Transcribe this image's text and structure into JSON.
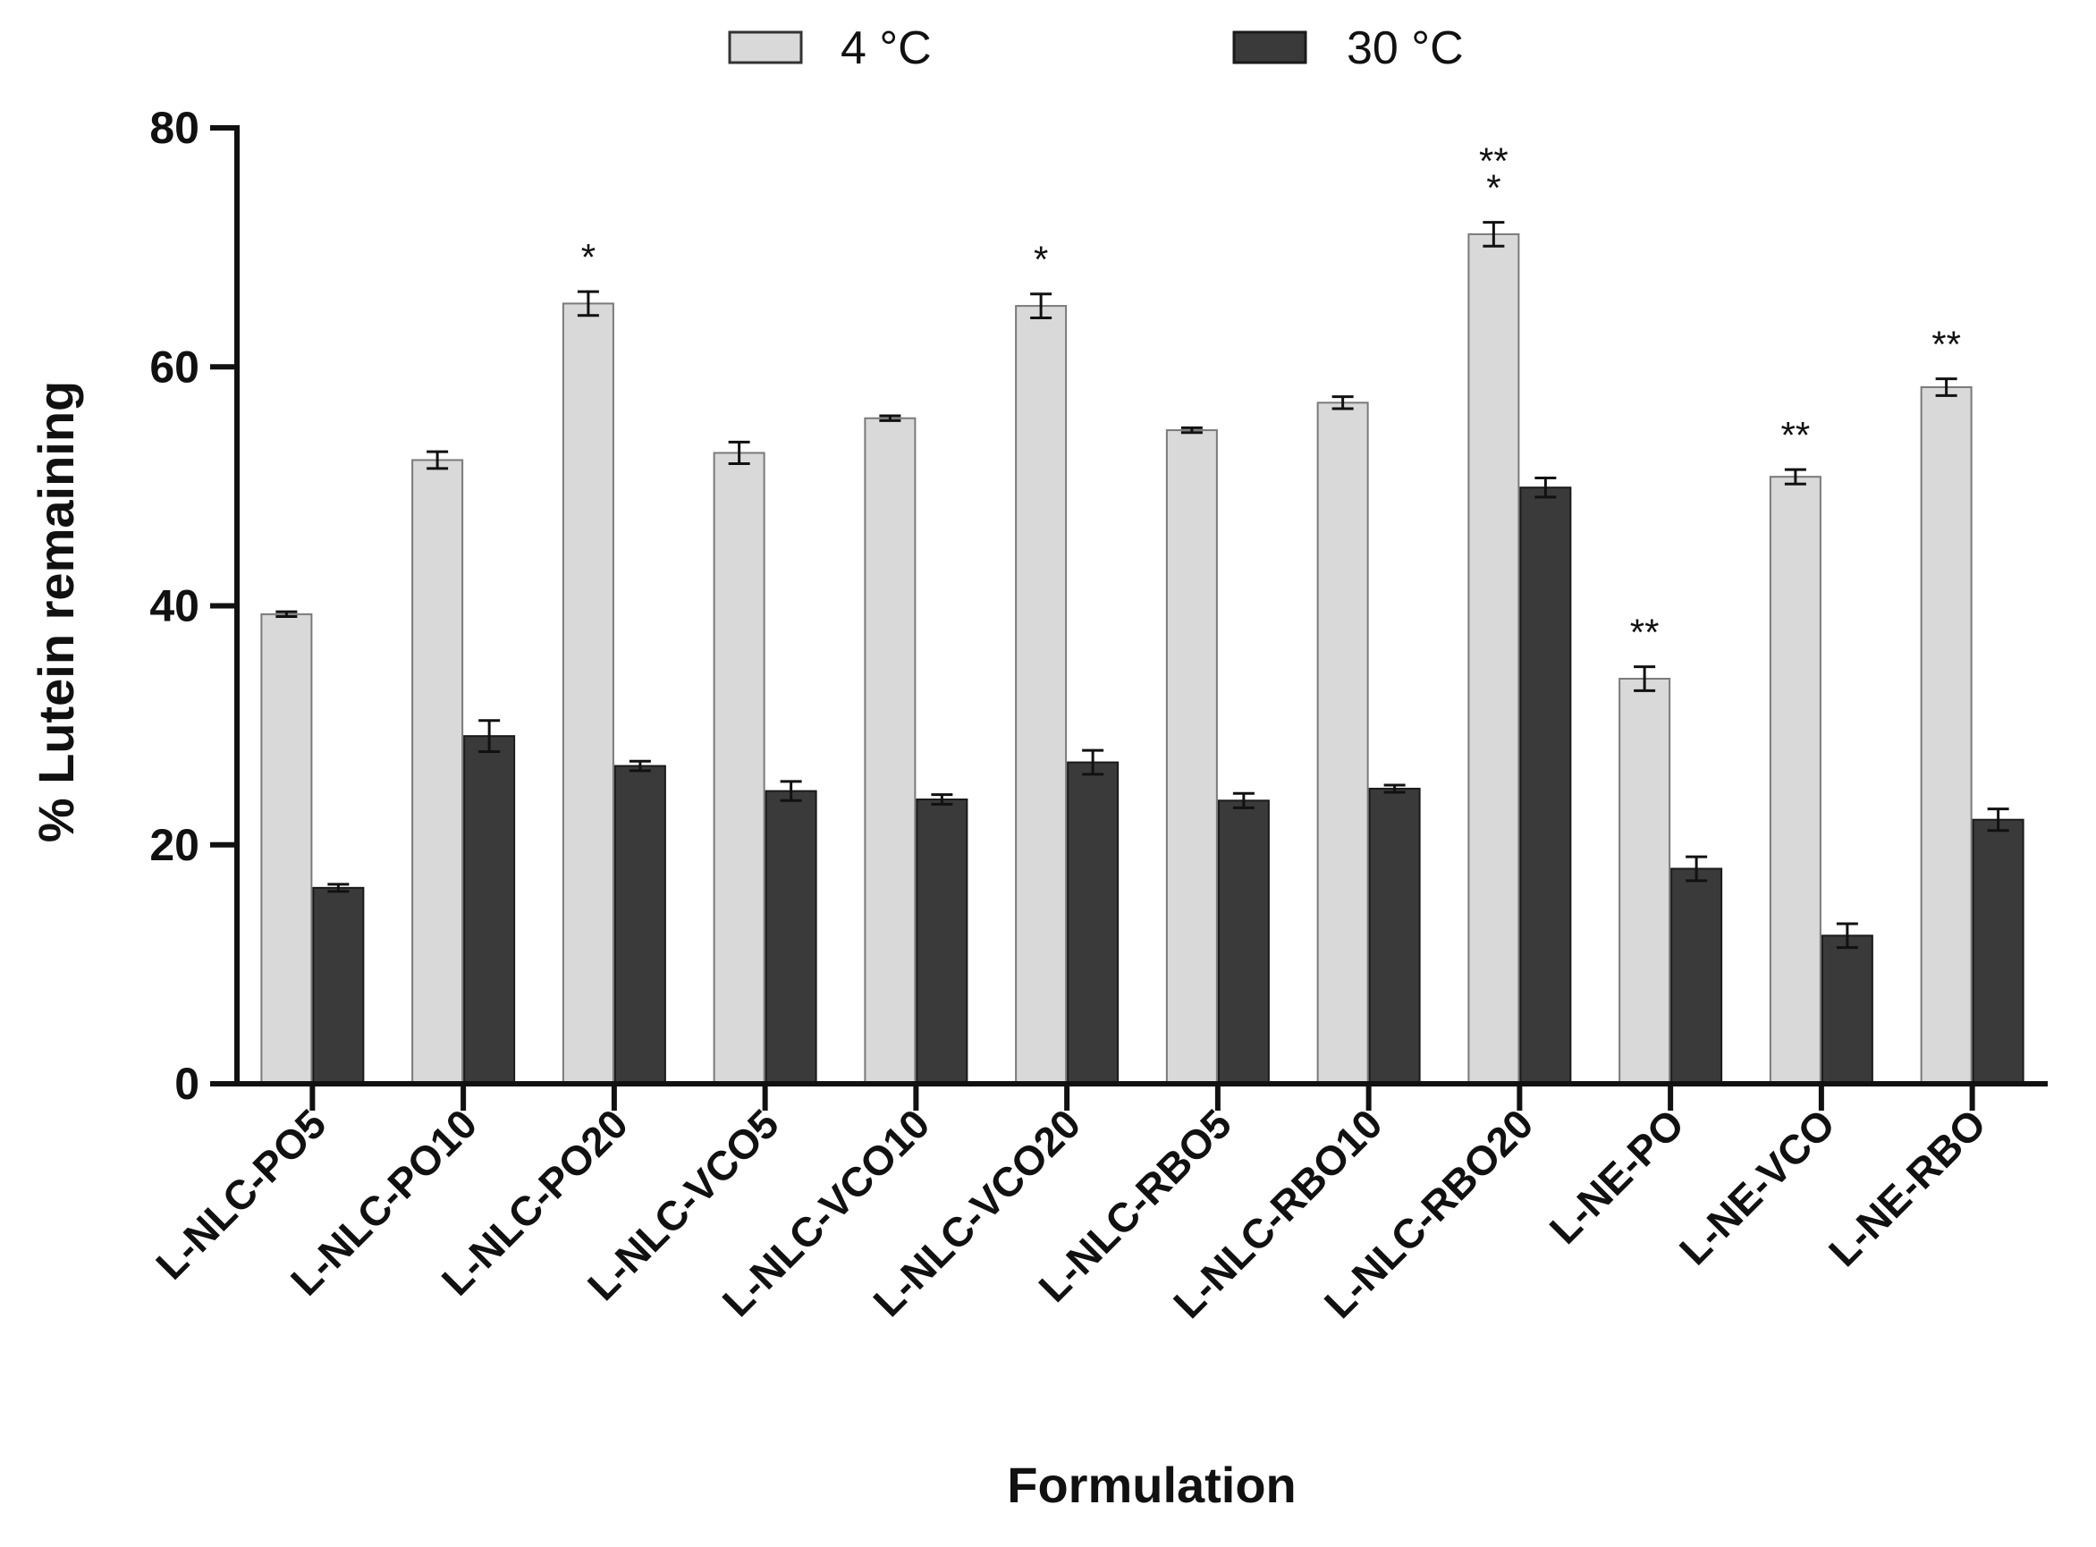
{
  "chart_data": {
    "type": "bar",
    "title": "",
    "xlabel": "Formulation",
    "ylabel": "% Lutein remaining",
    "ylim": [
      0,
      80
    ],
    "yticks": [
      0,
      20,
      40,
      60,
      80
    ],
    "grid": false,
    "legend_position": "top-center",
    "categories": [
      "L-NLC-PO5",
      "L-NLC-PO10",
      "L-NLC-PO20",
      "L-NLC-VCO5",
      "L-NLC-VCO10",
      "L-NLC-VCO20",
      "L-NLC-RBO5",
      "L-NLC-RBO10",
      "L-NLC-RBO20",
      "L-NE-PO",
      "L-NE-VCO",
      "L-NE-RBO"
    ],
    "series": [
      {
        "name": "4 °C",
        "color": "#d9d9d9",
        "values": [
          39.3,
          52.2,
          65.3,
          52.8,
          55.7,
          65.1,
          54.7,
          57.0,
          71.1,
          33.9,
          50.8,
          58.3
        ],
        "errors": [
          0.2,
          0.7,
          1.0,
          0.9,
          0.2,
          1.0,
          0.2,
          0.5,
          1.0,
          1.0,
          0.6,
          0.7
        ],
        "annotations": [
          "",
          "",
          "*",
          "",
          "",
          "*",
          "",
          "",
          "**\n*",
          "**",
          "**",
          "**"
        ]
      },
      {
        "name": "30 °C",
        "color": "#3a3a3a",
        "values": [
          16.4,
          29.1,
          26.6,
          24.5,
          23.8,
          26.9,
          23.7,
          24.7,
          49.9,
          18.0,
          12.4,
          22.1
        ],
        "errors": [
          0.3,
          1.3,
          0.4,
          0.8,
          0.4,
          1.0,
          0.6,
          0.3,
          0.8,
          1.0,
          1.0,
          0.9
        ],
        "annotations": [
          "",
          "",
          "",
          "",
          "",
          "",
          "",
          "",
          "",
          "",
          "",
          ""
        ]
      }
    ]
  }
}
